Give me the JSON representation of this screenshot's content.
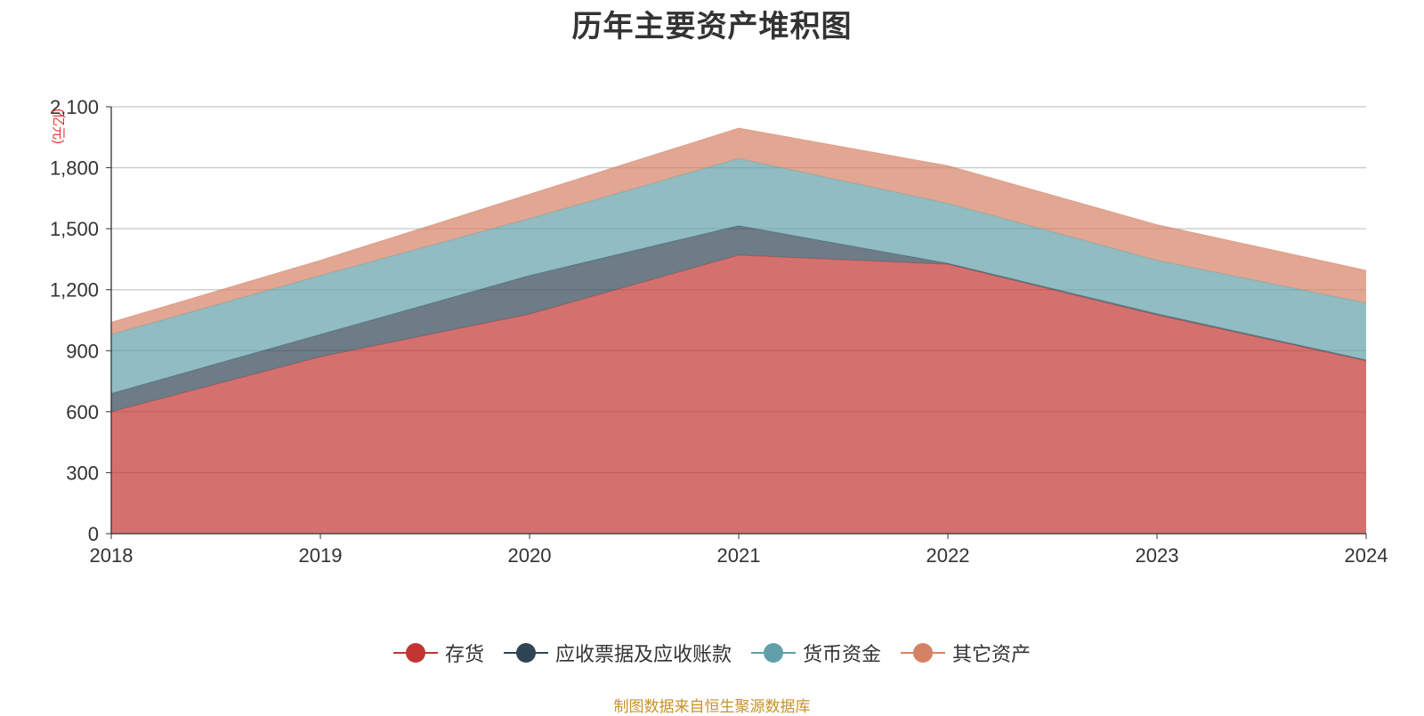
{
  "title": "历年主要资产堆积图",
  "source_note": "制图数据来自恒生聚源数据库",
  "chart_data": {
    "type": "area",
    "stacked": true,
    "title": "历年主要资产堆积图",
    "ylabel": "(亿元)",
    "xlabel": "",
    "categories": [
      "2018",
      "2019",
      "2020",
      "2021",
      "2022",
      "2023",
      "2024"
    ],
    "ylim": [
      0,
      2100
    ],
    "yticks": [
      0,
      300,
      600,
      900,
      1200,
      1500,
      1800,
      2100
    ],
    "ytick_labels": [
      "0",
      "300",
      "600",
      "900",
      "1,200",
      "1,500",
      "1,800",
      "2,100"
    ],
    "grid": true,
    "legend_position": "bottom",
    "series": [
      {
        "name": "存货",
        "color": "#c23531",
        "legend_color": "#c23531",
        "values": [
          600,
          870,
          1080,
          1370,
          1325,
          1075,
          850
        ]
      },
      {
        "name": "应收票据及应收账款",
        "color": "#2f4554",
        "legend_color": "#2f4554",
        "values": [
          90,
          110,
          190,
          145,
          5,
          7,
          5
        ]
      },
      {
        "name": "货币资金",
        "color": "#61a0a8",
        "legend_color": "#61a0a8",
        "values": [
          290,
          290,
          280,
          330,
          295,
          263,
          280
        ]
      },
      {
        "name": "其它资产",
        "color": "#d48265",
        "legend_color": "#d48265",
        "values": [
          60,
          75,
          120,
          150,
          185,
          175,
          160
        ]
      }
    ]
  }
}
